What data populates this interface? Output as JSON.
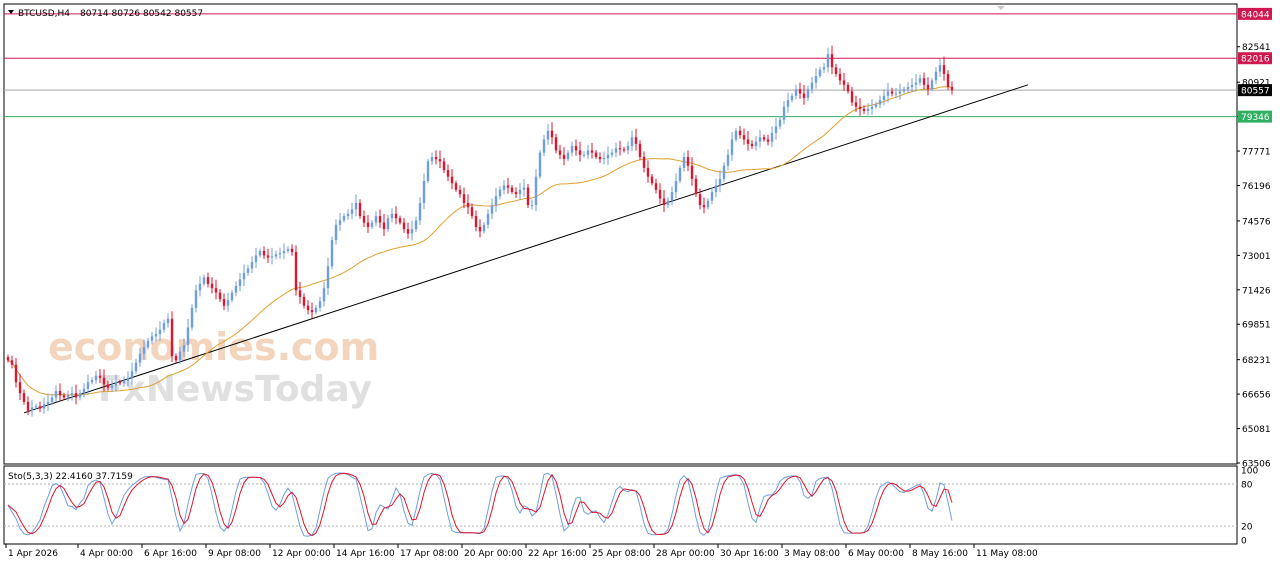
{
  "header": {
    "symbol": "BTCUSD,H4",
    "ohlc": "80714 80726 80542 80557"
  },
  "watermark": {
    "line1": "economies.com",
    "line2": "FxNewsToday"
  },
  "colors": {
    "bull": "#6f9ee0",
    "bear": "#e0142c",
    "ma": "#e0a030",
    "trendline": "#000000",
    "resistance": "#d01850",
    "support": "#30b060",
    "price": "#a8a8a8",
    "stoch_main": "#6f9ee0",
    "stoch_signal": "#e0142c"
  },
  "stoch": {
    "label": "Sto(5,3,3) 22.4160 37.7159",
    "levels": [
      100,
      80,
      20,
      0
    ],
    "tick_labels": [
      "100",
      "80",
      "20",
      "0"
    ]
  },
  "chart_data": {
    "type": "candlestick",
    "title": "BTCUSD,H4",
    "ylim": [
      63506,
      84450
    ],
    "y_ticks": [
      63506,
      65081,
      66656,
      68231,
      69851,
      71426,
      73001,
      74576,
      76196,
      77771,
      79346,
      80921,
      82541
    ],
    "y_tick_labels": [
      "63506",
      "65081",
      "66656",
      "68231",
      "69851",
      "71426",
      "73001",
      "74576",
      "76196",
      "77771",
      "79346",
      "80921",
      "82541"
    ],
    "x_tick_labels": [
      "1 Apr 2026",
      "4 Apr 00:00",
      "6 Apr 16:00",
      "9 Apr 08:00",
      "12 Apr 00:00",
      "14 Apr 16:00",
      "17 Apr 08:00",
      "20 Apr 00:00",
      "22 Apr 16:00",
      "25 Apr 08:00",
      "28 Apr 00:00",
      "30 Apr 16:00",
      "3 May 08:00",
      "6 May 00:00",
      "8 May 16:00",
      "11 May 08:00"
    ],
    "horizontal_levels": [
      {
        "value": 84044,
        "label": "84044",
        "kind": "resistance"
      },
      {
        "value": 82016,
        "label": "82016",
        "kind": "resistance"
      },
      {
        "value": 80557,
        "label": "80557",
        "kind": "price"
      },
      {
        "value": 79346,
        "label": "79346",
        "kind": "support"
      }
    ],
    "trendline": {
      "from": {
        "x": 4,
        "y": 65800
      },
      "to": {
        "x": 255,
        "y": 80800
      }
    },
    "closes": [
      68200,
      68000,
      67200,
      66700,
      66300,
      65900,
      66050,
      66100,
      66000,
      66200,
      66300,
      66500,
      66800,
      66600,
      66500,
      66600,
      66700,
      66500,
      66700,
      66900,
      67200,
      67300,
      67500,
      67400,
      67100,
      66950,
      67050,
      67200,
      67150,
      67250,
      67400,
      67700,
      68100,
      68500,
      68800,
      69100,
      69300,
      69400,
      69600,
      69900,
      70100,
      68400,
      68200,
      68600,
      68900,
      69700,
      70600,
      71400,
      71700,
      72000,
      71700,
      71500,
      71300,
      71000,
      70700,
      70950,
      71300,
      71600,
      71900,
      72200,
      72400,
      72700,
      73000,
      73200,
      73000,
      72900,
      72950,
      73050,
      73100,
      73200,
      73300,
      73150,
      71400,
      71100,
      70700,
      70500,
      70400,
      70600,
      70900,
      71500,
      72500,
      73700,
      74400,
      74600,
      74800,
      74900,
      75100,
      75400,
      74800,
      74500,
      74300,
      74500,
      74800,
      74500,
      74200,
      74700,
      74900,
      74700,
      74500,
      74200,
      74000,
      74200,
      74600,
      75400,
      76400,
      77300,
      77500,
      77400,
      77300,
      76900,
      76600,
      76300,
      76000,
      75800,
      75400,
      75200,
      74800,
      74300,
      74100,
      74400,
      74900,
      75300,
      75700,
      76000,
      76200,
      76100,
      75900,
      75800,
      76000,
      76100,
      75300,
      75300,
      76600,
      77700,
      78300,
      78700,
      78400,
      77800,
      77600,
      77400,
      77700,
      78000,
      77800,
      77600,
      77600,
      77800,
      77700,
      77500,
      77400,
      77450,
      77600,
      77700,
      77900,
      77850,
      77800,
      78000,
      78400,
      78100,
      77500,
      77000,
      76600,
      76300,
      76000,
      75600,
      75300,
      75500,
      75900,
      76400,
      77000,
      77500,
      77100,
      76500,
      75800,
      75300,
      75200,
      75500,
      75900,
      76200,
      76500,
      77100,
      77600,
      78300,
      78700,
      78500,
      78300,
      78100,
      78000,
      78200,
      78400,
      78300,
      78200,
      78600,
      78900,
      79200,
      79800,
      80100,
      80300,
      80600,
      80400,
      80200,
      80600,
      80900,
      81200,
      81500,
      81600,
      82200,
      81600,
      81300,
      81000,
      80800,
      80500,
      80000,
      79800,
      79700,
      79600,
      79700,
      79800,
      79900,
      80100,
      80300,
      80500,
      80400,
      80400,
      80500,
      80600,
      80700,
      80800,
      80900,
      81100,
      80800,
      80600,
      81000,
      81400,
      81700,
      81300,
      80700,
      80557
    ],
    "ma_period": 34,
    "x_label_positions": [
      0,
      18,
      34,
      50,
      66,
      82,
      98,
      114,
      130,
      146,
      162,
      178,
      194,
      210,
      226,
      242
    ],
    "grid": false
  }
}
